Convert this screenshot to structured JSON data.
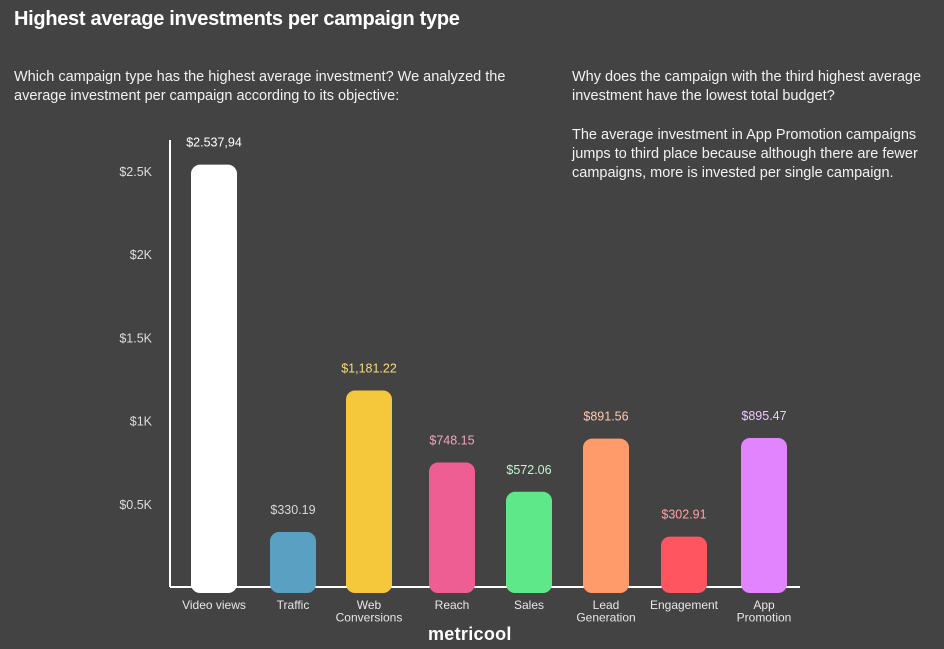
{
  "title": "Highest average investments per campaign type",
  "intro": "Which campaign type has the highest average investment? We analyzed the average investment per campaign according to its objective:",
  "question": "Why does the campaign with the third highest average investment have the lowest total budget?",
  "answer": "The average investment in App Promotion campaigns jumps to third place because although there are fewer campaigns, more is invested per single campaign.",
  "brand": "metricool",
  "chart_data": {
    "type": "bar",
    "categories": [
      [
        "Video views"
      ],
      [
        "Traffic"
      ],
      [
        "Web",
        "Conversions"
      ],
      [
        "Reach"
      ],
      [
        "Sales"
      ],
      [
        "Lead",
        "Generation"
      ],
      [
        "Engagement"
      ],
      [
        "App",
        "Promotion"
      ]
    ],
    "values": [
      2537.94,
      330.19,
      1181.22,
      748.15,
      572.06,
      891.56,
      302.91,
      895.47
    ],
    "data_labels": [
      "$2.537,94",
      "$330.19",
      "$1,181.22",
      "$748.15",
      "$572.06",
      "$891.56",
      "$302.91",
      "$895.47"
    ],
    "bar_colors": [
      "#ffffff",
      "#5aa0c3",
      "#f5c83c",
      "#ee5e92",
      "#5ee88a",
      "#ff9a6a",
      "#ff5560",
      "#e384ff"
    ],
    "label_colors": [
      "#ffffff",
      "#d8d8d8",
      "#f5dc7a",
      "#f3a2be",
      "#bff5cf",
      "#ffc9ad",
      "#ffa0a6",
      "#efc7ff"
    ],
    "y_ticks": [
      500,
      1000,
      1500,
      2000,
      2500
    ],
    "y_tick_labels": [
      "$0.5K",
      "$1K",
      "$1.5K",
      "$2K",
      "$2.5K"
    ],
    "ylim": [
      0,
      2500
    ],
    "grid": false
  }
}
